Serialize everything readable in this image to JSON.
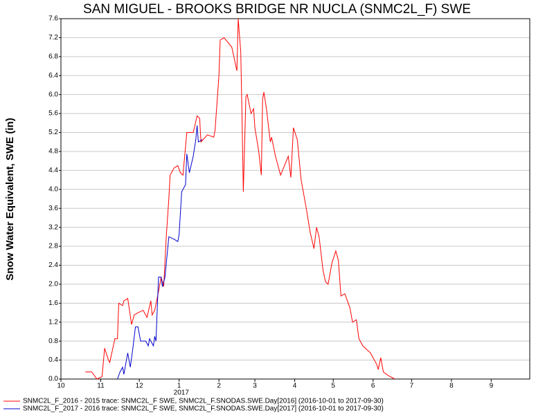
{
  "chart_data": {
    "type": "line",
    "title": "SAN MIGUEL - BROOKS BRIDGE NR NUCLA (SNMC2L_F) SWE",
    "y_label": "Snow Water Equivalent, SWE (in)",
    "x_annotation": "2017",
    "xlim": [
      "2016-10-01",
      "2017-10-01"
    ],
    "xticks": [
      {
        "value": "2016-10-01",
        "label": "10"
      },
      {
        "value": "2016-11-01",
        "label": "11"
      },
      {
        "value": "2016-12-01",
        "label": "12"
      },
      {
        "value": "2017-01-01",
        "label": "1"
      },
      {
        "value": "2017-02-01",
        "label": "2"
      },
      {
        "value": "2017-03-01",
        "label": "3"
      },
      {
        "value": "2017-04-01",
        "label": "4"
      },
      {
        "value": "2017-05-01",
        "label": "5"
      },
      {
        "value": "2017-06-01",
        "label": "6"
      },
      {
        "value": "2017-07-01",
        "label": "7"
      },
      {
        "value": "2017-08-01",
        "label": "8"
      },
      {
        "value": "2017-09-01",
        "label": "9"
      }
    ],
    "ylim": [
      0,
      7.6
    ],
    "yticks": [
      {
        "value": 0,
        "label": "0.0"
      },
      0.4,
      0.8,
      1.2,
      1.6,
      {
        "value": 2,
        "label": "2.0"
      },
      2.4,
      2.8,
      3.2,
      3.6,
      {
        "value": 4,
        "label": "4.0"
      },
      4.4,
      4.8,
      5.2,
      5.6,
      {
        "value": 6,
        "label": "6.0"
      },
      6.4,
      6.8,
      7.2,
      7.6
    ],
    "grid": true,
    "legend": "bottom-left",
    "series": [
      {
        "name": "SNMC2L_F_2016 - 2015 trace: SNMC2L_F SWE, SNMC2L_F.SNODAS.SWE.Day[2016] (2016-10-01 to 2017-09-30)",
        "color": "#ff0000",
        "x": [
          "2016-10-20",
          "2016-10-25",
          "2016-10-29",
          "2016-11-02",
          "2016-11-04",
          "2016-11-07",
          "2016-11-08",
          "2016-11-12",
          "2016-11-14",
          "2016-11-15",
          "2016-11-18",
          "2016-11-19",
          "2016-11-22",
          "2016-11-25",
          "2016-11-27",
          "2016-11-30",
          "2016-12-04",
          "2016-12-07",
          "2016-12-10",
          "2016-12-11",
          "2016-12-13",
          "2016-12-16",
          "2016-12-18",
          "2016-12-20",
          "2016-12-22",
          "2016-12-24",
          "2016-12-25",
          "2016-12-28",
          "2016-12-31",
          "2017-01-02",
          "2017-01-04",
          "2017-01-07",
          "2017-01-12",
          "2017-01-15",
          "2017-01-17",
          "2017-01-18",
          "2017-01-23",
          "2017-01-28",
          "2017-01-29",
          "2017-02-01",
          "2017-02-02",
          "2017-02-05",
          "2017-02-08",
          "2017-02-11",
          "2017-02-15",
          "2017-02-16",
          "2017-02-18",
          "2017-02-19",
          "2017-02-20",
          "2017-02-22",
          "2017-02-23",
          "2017-02-26",
          "2017-02-28",
          "2017-03-01",
          "2017-03-04",
          "2017-03-06",
          "2017-03-07",
          "2017-03-08",
          "2017-03-10",
          "2017-03-13",
          "2017-03-14",
          "2017-03-17",
          "2017-03-21",
          "2017-03-24",
          "2017-03-27",
          "2017-03-29",
          "2017-03-31",
          "2017-04-03",
          "2017-04-06",
          "2017-04-10",
          "2017-04-13",
          "2017-04-16",
          "2017-04-18",
          "2017-04-20",
          "2017-04-23",
          "2017-04-25",
          "2017-04-27",
          "2017-04-30",
          "2017-05-03",
          "2017-05-05",
          "2017-05-07",
          "2017-05-10",
          "2017-05-14",
          "2017-05-16",
          "2017-05-19",
          "2017-05-21",
          "2017-05-24",
          "2017-05-30",
          "2017-06-04",
          "2017-06-05",
          "2017-06-07",
          "2017-06-09",
          "2017-06-13",
          "2017-06-18"
        ],
        "values": [
          0.15,
          0.15,
          0.0,
          0.05,
          0.65,
          0.4,
          0.35,
          0.85,
          0.85,
          1.6,
          1.55,
          1.65,
          1.7,
          1.15,
          1.35,
          1.4,
          1.45,
          1.3,
          1.65,
          1.35,
          1.45,
          1.85,
          2.15,
          1.95,
          3.0,
          3.8,
          4.3,
          4.45,
          4.5,
          4.35,
          4.3,
          5.2,
          5.2,
          5.55,
          5.5,
          5.0,
          5.15,
          5.1,
          5.25,
          6.4,
          7.15,
          7.2,
          7.1,
          7.0,
          6.5,
          7.6,
          6.9,
          5.5,
          3.95,
          5.95,
          6.0,
          5.6,
          5.7,
          5.3,
          4.8,
          4.3,
          5.9,
          6.05,
          5.7,
          5.0,
          5.1,
          4.7,
          4.3,
          4.5,
          4.7,
          4.25,
          5.3,
          5.05,
          4.2,
          3.6,
          3.1,
          2.75,
          3.2,
          3.0,
          2.3,
          2.05,
          2.0,
          2.45,
          2.7,
          2.5,
          1.75,
          1.8,
          1.5,
          1.2,
          1.25,
          0.85,
          0.7,
          0.55,
          0.3,
          0.2,
          0.45,
          0.15,
          0.07,
          0.0
        ]
      },
      {
        "name": "SNMC2L_F_2017 - 2016 trace: SNMC2L_F SWE, SNMC2L_F.SNODAS.SWE.Day[2017] (2016-10-01 to 2017-09-30)",
        "color": "#0000cc",
        "x": [
          "2016-11-14",
          "2016-11-16",
          "2016-11-18",
          "2016-11-19",
          "2016-11-22",
          "2016-11-24",
          "2016-11-26",
          "2016-11-28",
          "2016-11-30",
          "2016-12-02",
          "2016-12-06",
          "2016-12-08",
          "2016-12-09",
          "2016-12-12",
          "2016-12-13",
          "2016-12-14",
          "2016-12-15",
          "2016-12-16",
          "2016-12-18",
          "2016-12-19",
          "2016-12-21",
          "2016-12-24",
          "2016-12-28",
          "2016-12-31",
          "2017-01-01",
          "2017-01-03",
          "2017-01-06",
          "2017-01-07",
          "2017-01-09",
          "2017-01-12",
          "2017-01-14",
          "2017-01-15",
          "2017-01-16",
          "2017-01-19"
        ],
        "values": [
          0.0,
          0.15,
          0.25,
          0.1,
          0.55,
          0.25,
          0.65,
          1.1,
          1.1,
          0.8,
          0.8,
          0.7,
          0.85,
          0.7,
          0.9,
          0.8,
          1.5,
          2.15,
          2.15,
          1.95,
          2.15,
          3.0,
          2.95,
          2.9,
          3.05,
          3.95,
          4.1,
          4.75,
          4.35,
          4.7,
          5.05,
          5.35,
          5.0,
          5.05
        ]
      }
    ]
  }
}
